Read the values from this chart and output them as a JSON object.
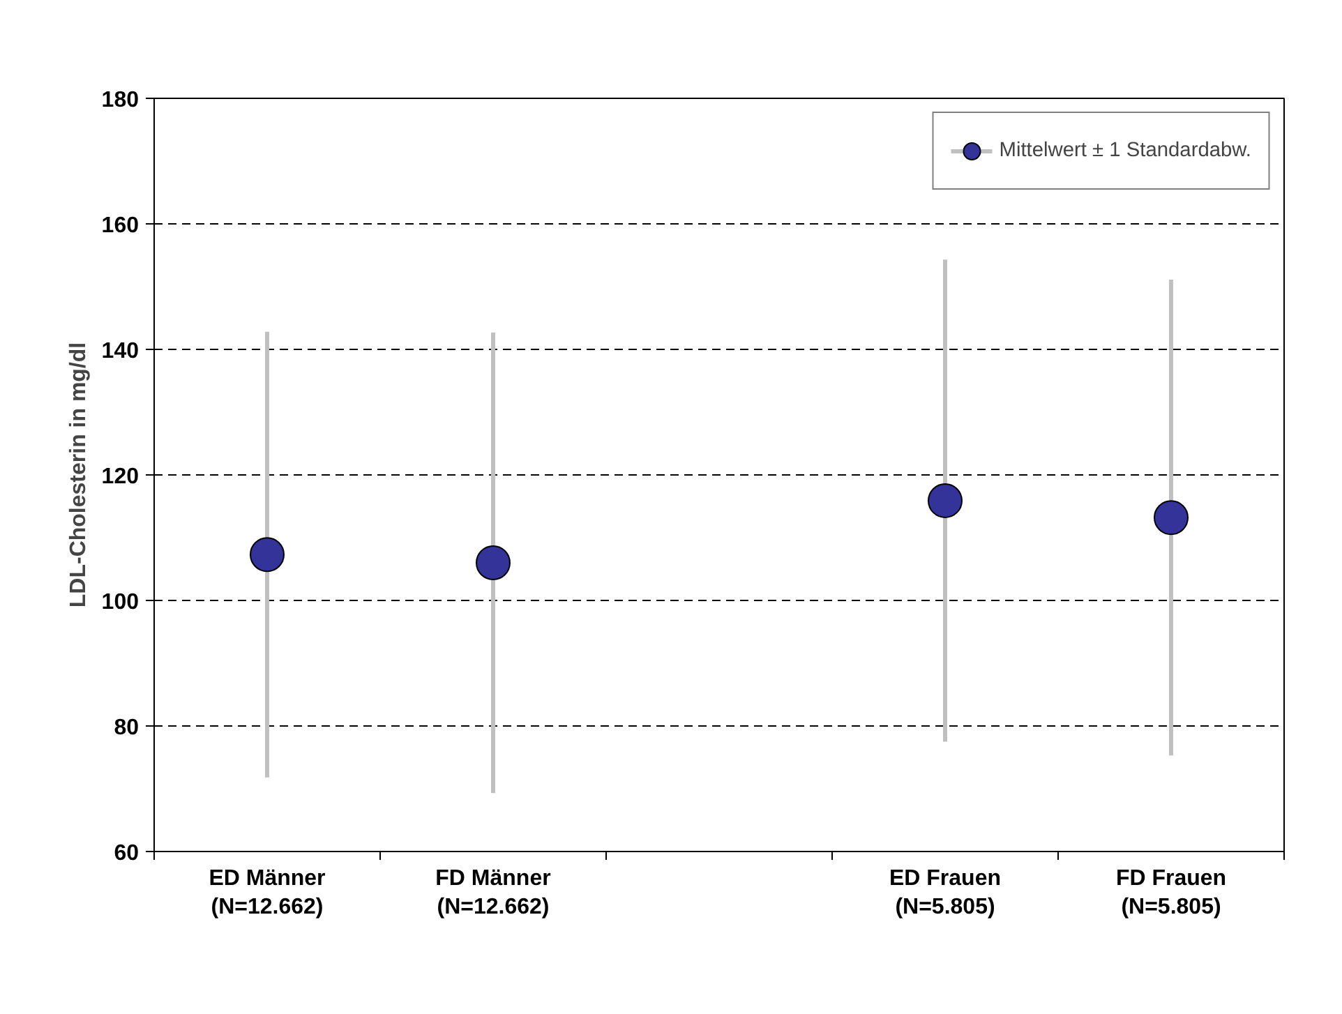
{
  "chart_data": {
    "type": "scatter",
    "ylabel": "LDL-Cholesterin in mg/dl",
    "categories": [
      "ED Männer\n(N=12.662)",
      "FD Männer\n(N=12.662)",
      null,
      "ED Frauen\n(N=5.805)",
      "FD Frauen\n(N=5.805)"
    ],
    "series": [
      {
        "name": "Mittelwert ± 1 Standardabw.",
        "color": "#333399",
        "values": [
          107.3,
          106.0,
          null,
          115.9,
          113.2
        ],
        "errors": [
          35.5,
          36.7,
          null,
          38.4,
          37.9
        ]
      }
    ],
    "ylim": [
      60,
      180
    ],
    "yticks": [
      60,
      80,
      100,
      120,
      140,
      160,
      180
    ],
    "grid": "y",
    "legend": "top right",
    "marker": "circle"
  }
}
